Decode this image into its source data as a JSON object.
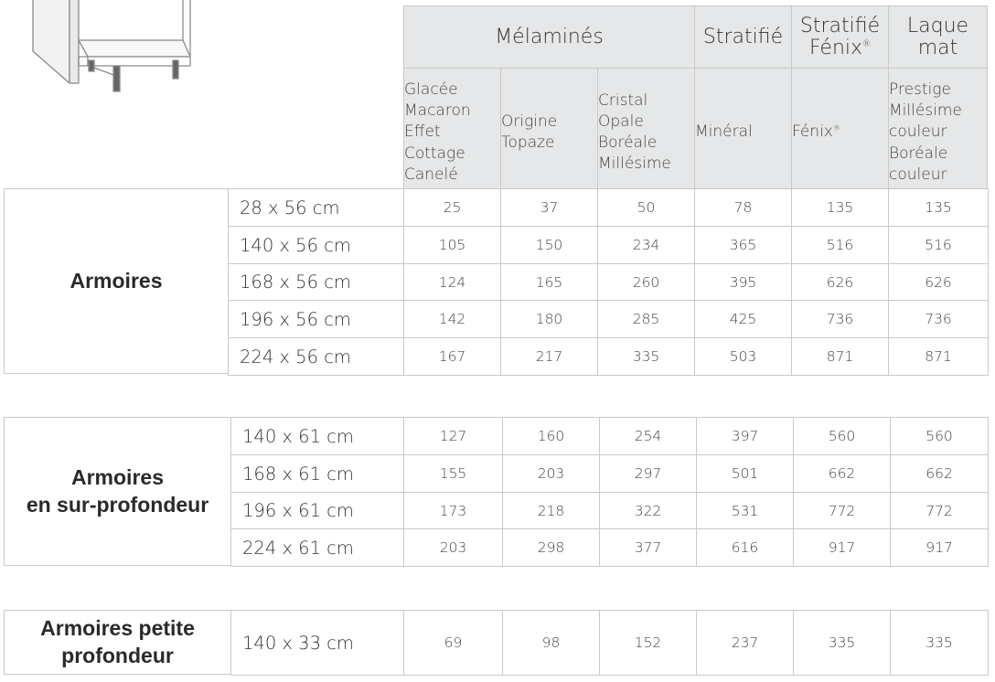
{
  "header": {
    "groups": [
      {
        "label": "Mélaminés"
      },
      {
        "label": "Stratifié"
      },
      {
        "line1": "Stratifié",
        "line2": "Fénix",
        "mark": "®"
      },
      {
        "line1": "Laque",
        "line2": "mat"
      }
    ],
    "columns": [
      {
        "l1": "Glacée",
        "l2": "Macaron",
        "l3": "Effet",
        "l4": "Cottage",
        "l5": "Canelé"
      },
      {
        "l1": "Origine",
        "l2": "Topaze"
      },
      {
        "l1": "Cristal",
        "l2": "Opale",
        "l3": "Boréale",
        "l4": "Millésime"
      },
      {
        "l1": "Minéral"
      },
      {
        "l1": "Fénix",
        "mark": "®"
      },
      {
        "l1": "Prestige",
        "l2": "Millésime",
        "l3": "couleur",
        "l4": "Boréale",
        "l5": "couleur"
      }
    ]
  },
  "sections": [
    {
      "label_line1": "Armoires",
      "rows": [
        {
          "size": "28 x 56 cm",
          "values": [
            "25",
            "37",
            "50",
            "78",
            "135",
            "135"
          ]
        },
        {
          "size": "140 x 56 cm",
          "values": [
            "105",
            "150",
            "234",
            "365",
            "516",
            "516"
          ]
        },
        {
          "size": "168 x 56 cm",
          "values": [
            "124",
            "165",
            "260",
            "395",
            "626",
            "626"
          ]
        },
        {
          "size": "196 x 56 cm",
          "values": [
            "142",
            "180",
            "285",
            "425",
            "736",
            "736"
          ]
        },
        {
          "size": "224 x 56 cm",
          "values": [
            "167",
            "217",
            "335",
            "503",
            "871",
            "871"
          ]
        }
      ]
    },
    {
      "label_line1": "Armoires",
      "label_line2": "en sur-profondeur",
      "rows": [
        {
          "size": "140 x 61 cm",
          "values": [
            "127",
            "160",
            "254",
            "397",
            "560",
            "560"
          ]
        },
        {
          "size": "168 x 61 cm",
          "values": [
            "155",
            "203",
            "297",
            "501",
            "662",
            "662"
          ]
        },
        {
          "size": "196 x 61 cm",
          "values": [
            "173",
            "218",
            "322",
            "531",
            "772",
            "772"
          ]
        },
        {
          "size": "224 x 61 cm",
          "values": [
            "203",
            "298",
            "377",
            "616",
            "917",
            "917"
          ]
        }
      ]
    },
    {
      "label_line1": "Armoires petite",
      "label_line2": "profondeur",
      "rows": [
        {
          "size": "140 x 33 cm",
          "values": [
            "69",
            "98",
            "152",
            "237",
            "335",
            "335"
          ]
        }
      ]
    }
  ],
  "illustration": {
    "icon": "cabinet-drawing-icon"
  }
}
